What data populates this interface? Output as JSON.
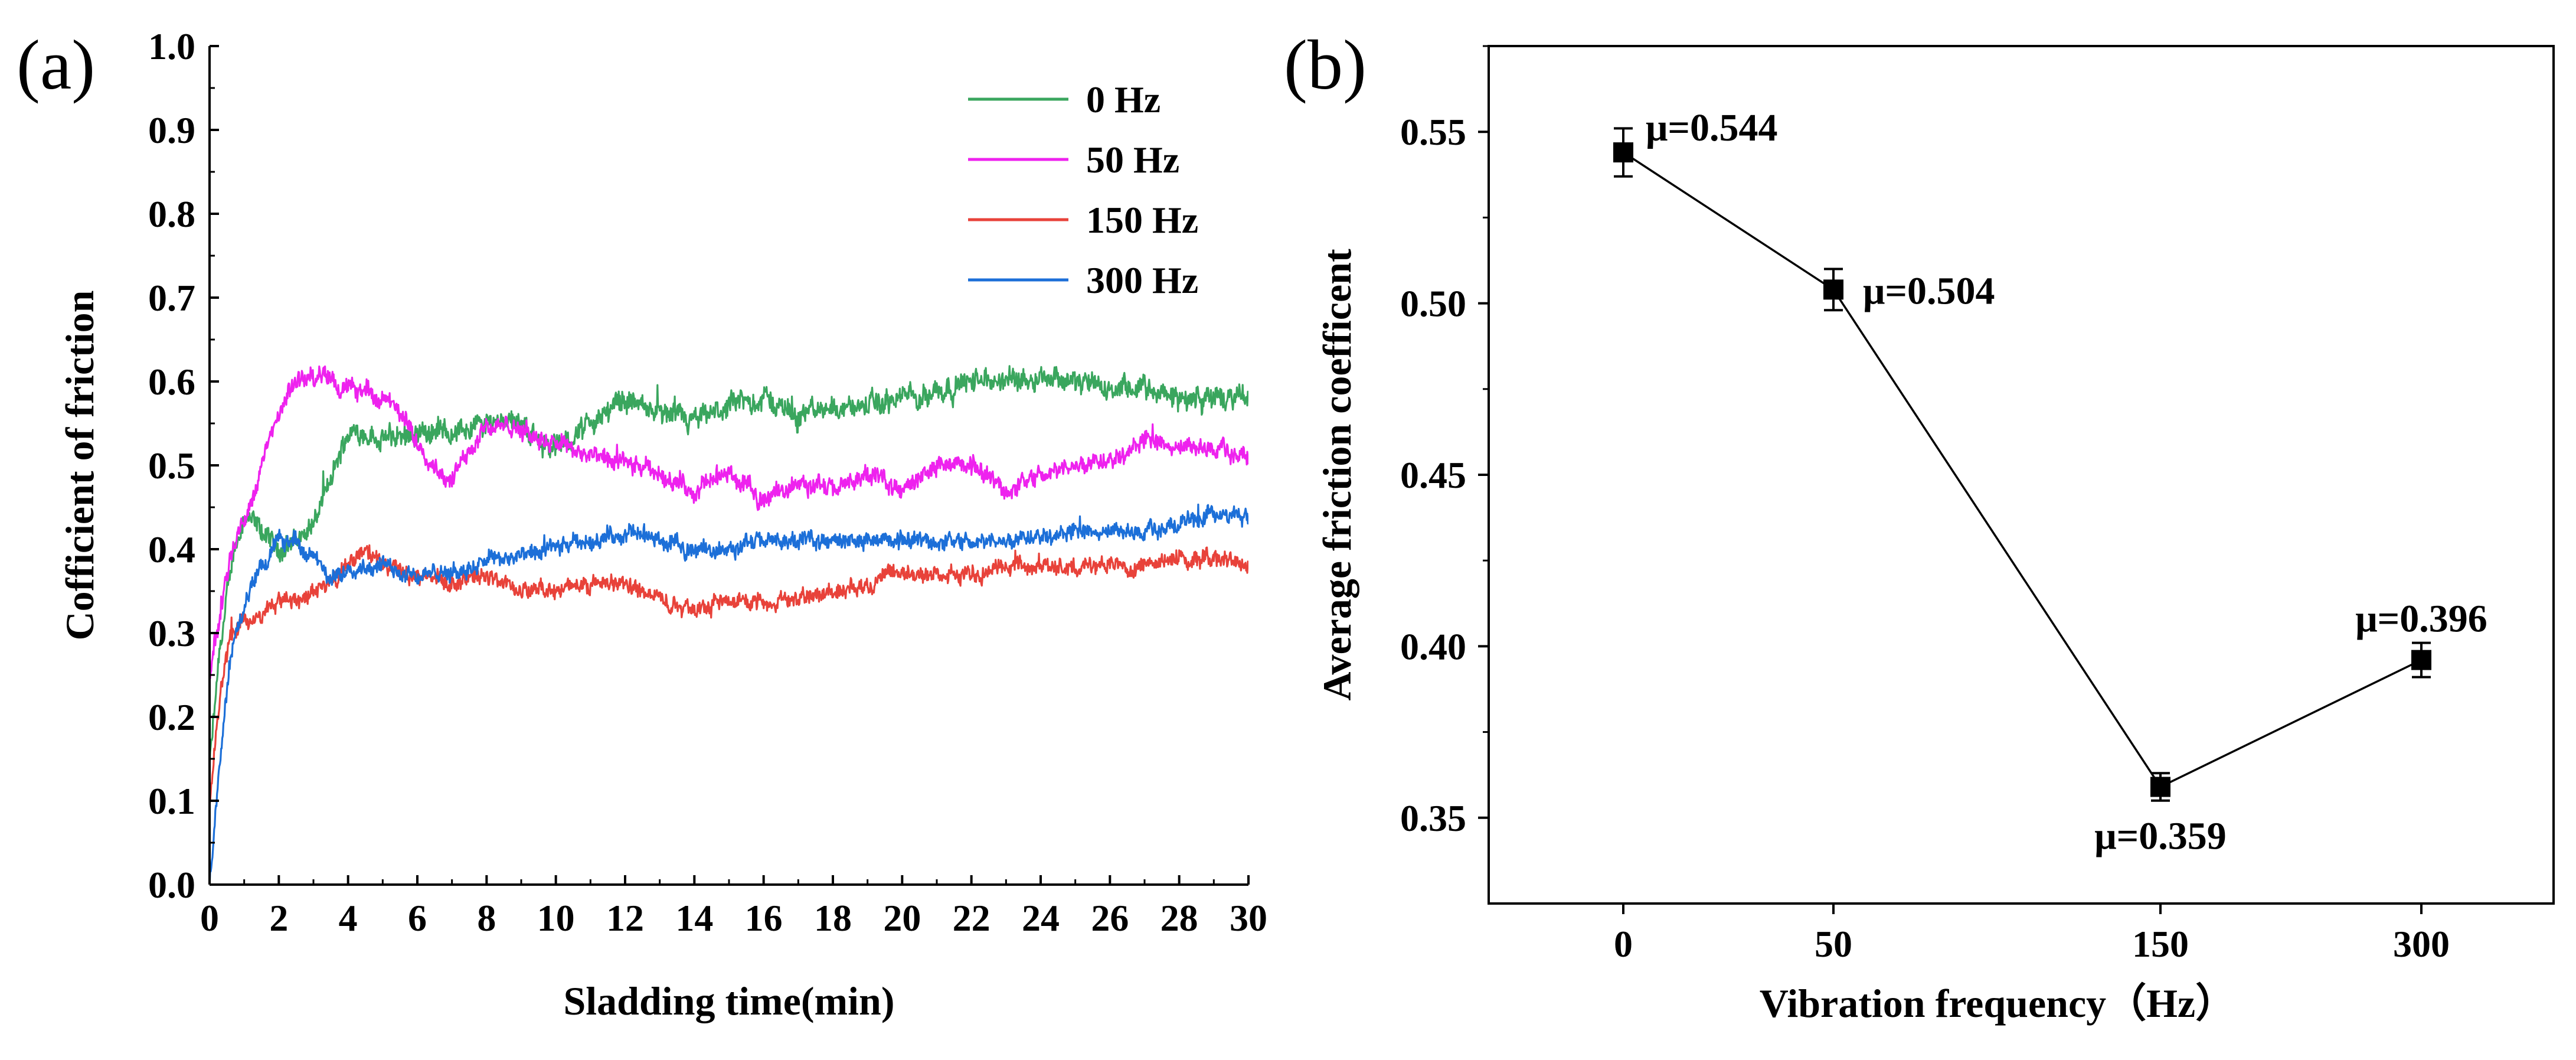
{
  "chart_data": [
    {
      "panel": "(a)",
      "type": "line",
      "title": "",
      "xlabel": "Sladding time(min)",
      "ylabel": "Cofficient of friction",
      "xlim": [
        0,
        30
      ],
      "ylim": [
        0.0,
        1.0
      ],
      "xticks": [
        0,
        2,
        4,
        6,
        8,
        10,
        12,
        14,
        16,
        18,
        20,
        22,
        24,
        26,
        28,
        30
      ],
      "yticks": [
        "0.0",
        "0.1",
        "0.2",
        "0.3",
        "0.4",
        "0.5",
        "0.6",
        "0.7",
        "0.8",
        "0.9",
        "1.0"
      ],
      "legend_position": "top-right",
      "series": [
        {
          "name": "0 Hz",
          "color": "#3aa65e",
          "noise": 0.012,
          "x": [
            0,
            0.3,
            0.7,
            1.0,
            1.5,
            2.0,
            2.5,
            3.0,
            3.5,
            4.0,
            4.5,
            5.0,
            6.0,
            7.0,
            8.0,
            8.7,
            9.5,
            10.0,
            11.0,
            12.0,
            13.0,
            14.0,
            15.0,
            16.0,
            17.0,
            18.0,
            19.0,
            20.0,
            21.0,
            22.0,
            23.0,
            24.0,
            25.0,
            26.0,
            27.0,
            28.0,
            29.0,
            30.0
          ],
          "y": [
            0.14,
            0.28,
            0.4,
            0.44,
            0.42,
            0.4,
            0.41,
            0.43,
            0.48,
            0.54,
            0.54,
            0.53,
            0.54,
            0.54,
            0.55,
            0.56,
            0.53,
            0.52,
            0.55,
            0.58,
            0.56,
            0.55,
            0.57,
            0.58,
            0.56,
            0.57,
            0.57,
            0.58,
            0.59,
            0.6,
            0.6,
            0.61,
            0.6,
            0.59,
            0.59,
            0.58,
            0.58,
            0.58
          ]
        },
        {
          "name": "50 Hz",
          "color": "#ee22ee",
          "noise": 0.01,
          "x": [
            0,
            0.3,
            0.6,
            1.0,
            1.5,
            2.0,
            2.5,
            3.0,
            3.5,
            4.0,
            4.5,
            5.0,
            5.5,
            6.0,
            6.5,
            7.0,
            7.5,
            8.0,
            9.0,
            10.0,
            11.0,
            12.0,
            13.0,
            14.0,
            15.0,
            16.0,
            17.0,
            18.0,
            19.0,
            20.0,
            21.0,
            22.0,
            23.0,
            24.0,
            25.0,
            26.0,
            27.0,
            28.0,
            29.0,
            30.0
          ],
          "y": [
            0.25,
            0.32,
            0.4,
            0.43,
            0.5,
            0.56,
            0.6,
            0.61,
            0.6,
            0.59,
            0.59,
            0.58,
            0.56,
            0.53,
            0.5,
            0.48,
            0.52,
            0.55,
            0.54,
            0.53,
            0.51,
            0.5,
            0.49,
            0.47,
            0.49,
            0.46,
            0.48,
            0.47,
            0.49,
            0.47,
            0.5,
            0.5,
            0.47,
            0.49,
            0.5,
            0.51,
            0.53,
            0.52,
            0.52,
            0.51
          ]
        },
        {
          "name": "150 Hz",
          "color": "#e8423a",
          "noise": 0.009,
          "x": [
            0,
            0.3,
            0.6,
            1.0,
            1.5,
            2.0,
            2.5,
            3.0,
            3.5,
            4.0,
            4.5,
            5.0,
            6.0,
            7.0,
            8.0,
            9.0,
            10.0,
            11.0,
            12.0,
            13.0,
            14.0,
            15.0,
            16.0,
            17.0,
            18.0,
            19.0,
            20.0,
            21.0,
            22.0,
            23.0,
            24.0,
            25.0,
            26.0,
            27.0,
            28.0,
            29.0,
            30.0
          ],
          "y": [
            0.1,
            0.22,
            0.3,
            0.31,
            0.32,
            0.34,
            0.34,
            0.35,
            0.36,
            0.38,
            0.4,
            0.38,
            0.37,
            0.36,
            0.37,
            0.35,
            0.35,
            0.36,
            0.36,
            0.34,
            0.33,
            0.34,
            0.34,
            0.34,
            0.35,
            0.36,
            0.37,
            0.37,
            0.37,
            0.38,
            0.38,
            0.38,
            0.38,
            0.38,
            0.39,
            0.39,
            0.38
          ]
        },
        {
          "name": "300 Hz",
          "color": "#1c6fd8",
          "noise": 0.009,
          "x": [
            0,
            0.3,
            0.6,
            1.0,
            1.5,
            2.0,
            2.5,
            3.0,
            3.5,
            4.0,
            4.5,
            5.0,
            6.0,
            7.0,
            8.0,
            9.0,
            10.0,
            11.0,
            12.0,
            13.0,
            14.0,
            15.0,
            16.0,
            17.0,
            18.0,
            19.0,
            20.0,
            21.0,
            22.0,
            23.0,
            24.0,
            25.0,
            26.0,
            27.0,
            28.0,
            29.0,
            30.0
          ],
          "y": [
            0.0,
            0.15,
            0.27,
            0.33,
            0.38,
            0.41,
            0.41,
            0.39,
            0.36,
            0.38,
            0.38,
            0.38,
            0.37,
            0.37,
            0.39,
            0.39,
            0.4,
            0.41,
            0.42,
            0.41,
            0.4,
            0.4,
            0.41,
            0.41,
            0.41,
            0.41,
            0.41,
            0.41,
            0.41,
            0.41,
            0.42,
            0.42,
            0.42,
            0.42,
            0.43,
            0.44,
            0.44
          ]
        }
      ]
    },
    {
      "panel": "(b)",
      "type": "line",
      "title": "",
      "xlabel": "Vibration frequency（Hz）",
      "ylabel": "Average friction coefficent",
      "categories": [
        "0",
        "50",
        "150",
        "300"
      ],
      "ylim": [
        0.325,
        0.575
      ],
      "yticks": [
        "0.35",
        "0.40",
        "0.45",
        "0.50",
        "0.55"
      ],
      "marker": "square",
      "color": "#000000",
      "values": [
        0.544,
        0.504,
        0.359,
        0.396
      ],
      "errors": [
        0.007,
        0.006,
        0.004,
        0.005
      ],
      "annotations": [
        "μ=0.544",
        "μ=0.504",
        "μ=0.359",
        "μ=0.396"
      ]
    }
  ]
}
